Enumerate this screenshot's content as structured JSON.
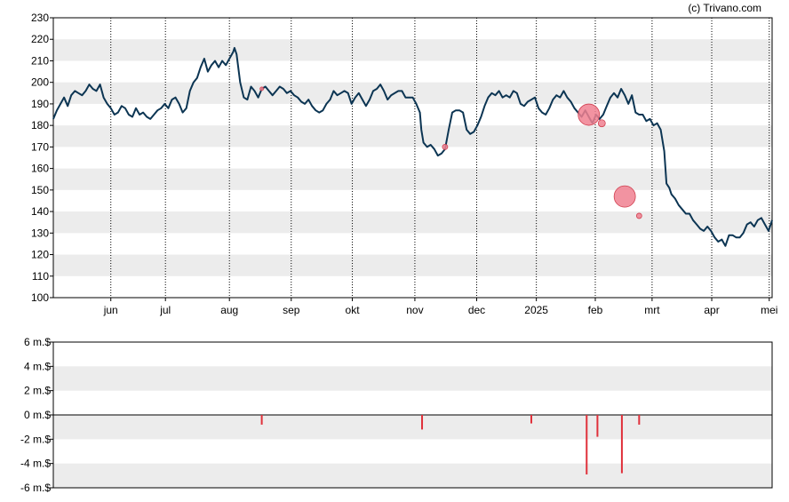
{
  "credit": "(c) Trivano.com",
  "chart_data": [
    {
      "type": "line",
      "grid": true,
      "ylim": [
        100,
        230
      ],
      "yticks": [
        100,
        110,
        120,
        130,
        140,
        150,
        160,
        170,
        180,
        190,
        200,
        210,
        220,
        230
      ],
      "xlim": [
        0,
        100
      ],
      "xticks": [
        {
          "label": "jun",
          "x": 8
        },
        {
          "label": "jul",
          "x": 15.6
        },
        {
          "label": "aug",
          "x": 24.5
        },
        {
          "label": "sep",
          "x": 33.1
        },
        {
          "label": "okt",
          "x": 41.6
        },
        {
          "label": "nov",
          "x": 50.3
        },
        {
          "label": "dec",
          "x": 58.9
        },
        {
          "label": "2025",
          "x": 67.2
        },
        {
          "label": "feb",
          "x": 75.4
        },
        {
          "label": "mrt",
          "x": 83.3
        },
        {
          "label": "apr",
          "x": 91.6
        },
        {
          "label": "mei",
          "x": 99.6
        }
      ],
      "series": [
        {
          "color": "#0c3553",
          "points": [
            [
              0,
              183
            ],
            [
              0.5,
              187
            ],
            [
              1,
              190
            ],
            [
              1.5,
              193
            ],
            [
              2,
              189
            ],
            [
              2.5,
              194
            ],
            [
              3,
              196
            ],
            [
              3.5,
              195
            ],
            [
              4,
              194
            ],
            [
              4.5,
              196
            ],
            [
              5,
              199
            ],
            [
              5.5,
              197
            ],
            [
              6,
              196
            ],
            [
              6.5,
              199
            ],
            [
              7,
              193
            ],
            [
              7.5,
              190
            ],
            [
              8,
              188
            ],
            [
              8.5,
              185
            ],
            [
              9,
              186
            ],
            [
              9.5,
              189
            ],
            [
              10,
              188
            ],
            [
              10.5,
              185
            ],
            [
              11,
              184
            ],
            [
              11.5,
              188
            ],
            [
              12,
              185
            ],
            [
              12.5,
              186
            ],
            [
              13,
              184
            ],
            [
              13.5,
              183
            ],
            [
              14,
              185
            ],
            [
              14.5,
              187
            ],
            [
              15,
              188
            ],
            [
              15.5,
              190
            ],
            [
              16,
              188
            ],
            [
              16.5,
              192
            ],
            [
              17,
              193
            ],
            [
              17.5,
              190
            ],
            [
              18,
              186
            ],
            [
              18.5,
              188
            ],
            [
              19,
              196
            ],
            [
              19.5,
              200
            ],
            [
              20,
              202
            ],
            [
              20.5,
              207
            ],
            [
              21,
              211
            ],
            [
              21.5,
              205
            ],
            [
              22,
              208
            ],
            [
              22.5,
              210
            ],
            [
              23,
              207
            ],
            [
              23.5,
              210
            ],
            [
              24,
              208
            ],
            [
              24.5,
              211
            ],
            [
              25,
              214
            ],
            [
              25.2,
              216
            ],
            [
              25.5,
              213
            ],
            [
              26,
              200
            ],
            [
              26.5,
              193
            ],
            [
              27,
              192
            ],
            [
              27.5,
              198
            ],
            [
              28,
              196
            ],
            [
              28.5,
              193
            ],
            [
              29,
              197
            ],
            [
              29.5,
              198
            ],
            [
              30,
              196
            ],
            [
              30.5,
              194
            ],
            [
              31,
              196
            ],
            [
              31.5,
              198
            ],
            [
              32,
              197
            ],
            [
              32.5,
              195
            ],
            [
              33,
              196
            ],
            [
              33.5,
              194
            ],
            [
              34,
              193
            ],
            [
              34.5,
              191
            ],
            [
              35,
              190
            ],
            [
              35.5,
              192
            ],
            [
              36,
              189
            ],
            [
              36.5,
              187
            ],
            [
              37,
              186
            ],
            [
              37.5,
              187
            ],
            [
              38,
              190
            ],
            [
              38.5,
              192
            ],
            [
              39,
              196
            ],
            [
              39.5,
              194
            ],
            [
              40,
              195
            ],
            [
              40.5,
              196
            ],
            [
              41,
              195
            ],
            [
              41.5,
              190
            ],
            [
              42,
              193
            ],
            [
              42.5,
              195
            ],
            [
              43,
              192
            ],
            [
              43.5,
              189
            ],
            [
              44,
              192
            ],
            [
              44.5,
              196
            ],
            [
              45,
              197
            ],
            [
              45.5,
              199
            ],
            [
              46,
              196
            ],
            [
              46.5,
              192
            ],
            [
              47,
              194
            ],
            [
              47.5,
              195
            ],
            [
              48,
              196
            ],
            [
              48.5,
              196
            ],
            [
              49,
              193
            ],
            [
              49.5,
              193
            ],
            [
              50,
              193
            ],
            [
              50.5,
              190
            ],
            [
              51,
              186
            ],
            [
              51.2,
              178
            ],
            [
              51.5,
              172
            ],
            [
              52,
              170
            ],
            [
              52.5,
              171
            ],
            [
              53,
              169
            ],
            [
              53.5,
              166
            ],
            [
              54,
              167
            ],
            [
              54.5,
              169
            ],
            [
              55,
              178
            ],
            [
              55.5,
              186
            ],
            [
              56,
              187
            ],
            [
              56.5,
              187
            ],
            [
              57,
              186
            ],
            [
              57.5,
              178
            ],
            [
              58,
              176
            ],
            [
              58.5,
              177
            ],
            [
              59,
              180
            ],
            [
              59.5,
              184
            ],
            [
              60,
              189
            ],
            [
              60.5,
              193
            ],
            [
              61,
              195
            ],
            [
              61.5,
              194
            ],
            [
              62,
              196
            ],
            [
              62.5,
              193
            ],
            [
              63,
              194
            ],
            [
              63.5,
              193
            ],
            [
              64,
              196
            ],
            [
              64.5,
              195
            ],
            [
              65,
              190
            ],
            [
              65.5,
              189
            ],
            [
              66,
              191
            ],
            [
              66.5,
              192
            ],
            [
              67,
              193
            ],
            [
              67.5,
              188
            ],
            [
              68,
              186
            ],
            [
              68.5,
              185
            ],
            [
              69,
              188
            ],
            [
              69.5,
              192
            ],
            [
              70,
              194
            ],
            [
              70.5,
              193
            ],
            [
              71,
              196
            ],
            [
              71.5,
              193
            ],
            [
              72,
              191
            ],
            [
              72.5,
              188
            ],
            [
              73,
              186
            ],
            [
              73.5,
              184
            ],
            [
              74,
              187
            ],
            [
              74.5,
              184
            ],
            [
              75,
              181
            ],
            [
              75.5,
              185
            ],
            [
              76,
              183
            ],
            [
              76.5,
              185
            ],
            [
              77,
              189
            ],
            [
              77.5,
              193
            ],
            [
              78,
              195
            ],
            [
              78.5,
              193
            ],
            [
              79,
              197
            ],
            [
              79.5,
              194
            ],
            [
              80,
              190
            ],
            [
              80.5,
              194
            ],
            [
              81,
              186
            ],
            [
              81.5,
              185
            ],
            [
              82,
              185
            ],
            [
              82.5,
              182
            ],
            [
              83,
              183
            ],
            [
              83.5,
              180
            ],
            [
              84,
              181
            ],
            [
              84.5,
              178
            ],
            [
              85,
              168
            ],
            [
              85.3,
              153
            ],
            [
              85.7,
              151
            ],
            [
              86,
              148
            ],
            [
              86.5,
              146
            ],
            [
              87,
              143
            ],
            [
              87.5,
              141
            ],
            [
              88,
              139
            ],
            [
              88.5,
              139
            ],
            [
              89,
              136
            ],
            [
              89.5,
              134
            ],
            [
              90,
              132
            ],
            [
              90.5,
              131
            ],
            [
              91,
              133
            ],
            [
              91.5,
              131
            ],
            [
              92,
              128
            ],
            [
              92.5,
              126
            ],
            [
              93,
              127
            ],
            [
              93.5,
              124
            ],
            [
              94,
              129
            ],
            [
              94.5,
              129
            ],
            [
              95,
              128
            ],
            [
              95.5,
              128
            ],
            [
              96,
              130
            ],
            [
              96.5,
              134
            ],
            [
              97,
              135
            ],
            [
              97.5,
              133
            ],
            [
              98,
              136
            ],
            [
              98.5,
              137
            ],
            [
              99,
              134
            ],
            [
              99.5,
              131
            ],
            [
              100,
              136
            ]
          ]
        }
      ],
      "markers": [
        {
          "x": 29,
          "y": 197,
          "r": 2,
          "color": "#f08090"
        },
        {
          "x": 54.5,
          "y": 170,
          "r": 3,
          "color": "#f08090"
        },
        {
          "x": 74.5,
          "y": 185,
          "r": 12,
          "color": "#f08090"
        },
        {
          "x": 76.3,
          "y": 181,
          "r": 4,
          "color": "#f08090"
        },
        {
          "x": 79.5,
          "y": 147,
          "r": 12,
          "color": "#f08090"
        },
        {
          "x": 81.5,
          "y": 138,
          "r": 3,
          "color": "#f08090"
        }
      ]
    },
    {
      "type": "bar",
      "grid": true,
      "ylim": [
        -6,
        6
      ],
      "yticks": [
        {
          "value": 6,
          "label": "6 m.$"
        },
        {
          "value": 4,
          "label": "4 m.$"
        },
        {
          "value": 2,
          "label": "2 m.$"
        },
        {
          "value": 0,
          "label": "0 m.$"
        },
        {
          "value": -2,
          "label": "-2 m.$"
        },
        {
          "value": -4,
          "label": "-4 m.$"
        },
        {
          "value": -6,
          "label": "-6 m.$"
        }
      ],
      "xlim": [
        0,
        100
      ],
      "bar_color": "#e0303a",
      "values": [
        {
          "x": 29,
          "value": -0.8
        },
        {
          "x": 51.3,
          "value": -1.2
        },
        {
          "x": 66.5,
          "value": -0.7
        },
        {
          "x": 74.2,
          "value": -4.9
        },
        {
          "x": 75.7,
          "value": -1.8
        },
        {
          "x": 79.1,
          "value": -4.8
        },
        {
          "x": 81.5,
          "value": -0.8
        }
      ]
    }
  ]
}
